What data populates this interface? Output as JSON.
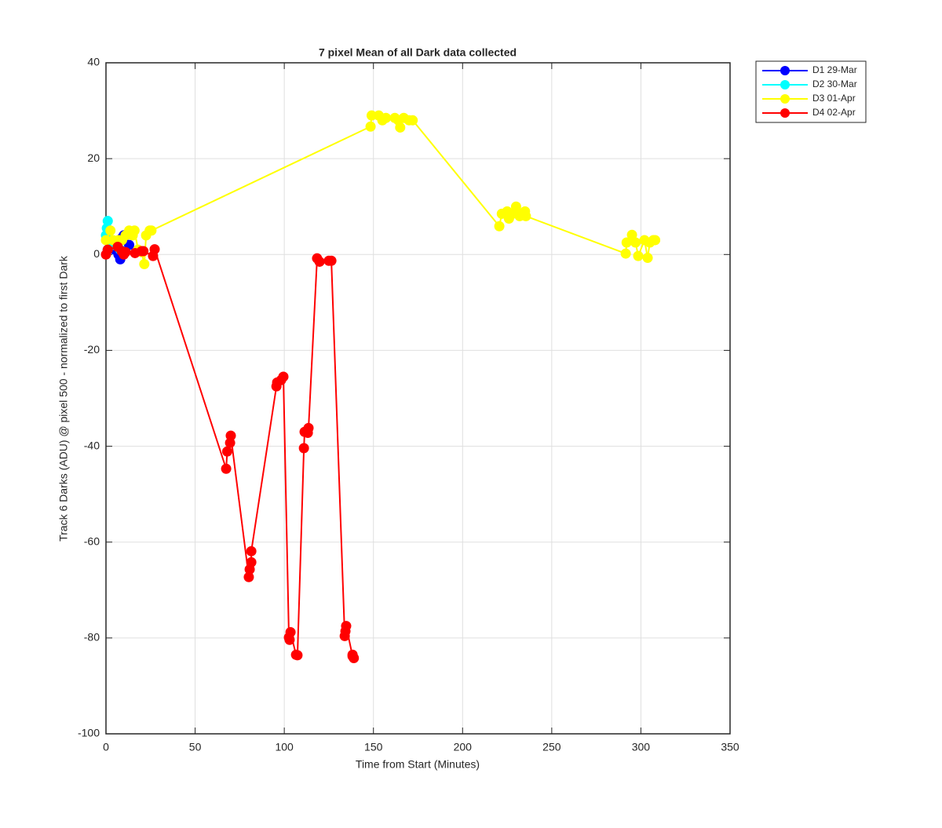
{
  "chart_data": {
    "type": "line",
    "title": "7 pixel Mean of all Dark data collected",
    "xlabel": "Time from Start (Minutes)",
    "ylabel": "Track 6 Darks (ADU) @ pixel 500 - normalized to first Dark",
    "xlim": [
      0,
      350
    ],
    "xticks": [
      0,
      50,
      100,
      150,
      200,
      250,
      300,
      350
    ],
    "ylim": [
      -100,
      40
    ],
    "yticks": [
      -100,
      -80,
      -60,
      -40,
      -20,
      0,
      20,
      40
    ],
    "grid": true,
    "legend": "outside-northeast",
    "series": [
      {
        "name": "D1 29-Mar",
        "color": "#0000ff",
        "x": [
          1,
          3,
          5,
          7,
          8,
          9,
          10,
          11,
          13
        ],
        "values": [
          1,
          2,
          1,
          0,
          -1,
          3.5,
          4,
          4,
          2
        ]
      },
      {
        "name": "D2 30-Mar",
        "color": "#00ffff",
        "x": [
          0,
          0.5,
          1,
          2,
          4,
          6,
          8
        ],
        "values": [
          4,
          5.5,
          7,
          3,
          2,
          2,
          1
        ]
      },
      {
        "name": "D3 01-Apr",
        "color": "#ffff00",
        "x": [
          0,
          2.5,
          4,
          7,
          9,
          11,
          13,
          15,
          16,
          18,
          20,
          21.5,
          22.5,
          24.5,
          25.5,
          148.4,
          149,
          153,
          155,
          157,
          162,
          164,
          165,
          167,
          170,
          172,
          220.6,
          222,
          225,
          226,
          228,
          230,
          232,
          233,
          235,
          235.5,
          291.5,
          292,
          295,
          297,
          298.5,
          302,
          303.8,
          305,
          307,
          308
        ],
        "values": [
          3,
          5,
          3,
          3,
          3,
          4,
          5,
          4,
          5,
          1,
          0.5,
          -2,
          4,
          5,
          5,
          26.7,
          29,
          29,
          28,
          28.5,
          28.5,
          28,
          26.5,
          28.5,
          28,
          28,
          5.9,
          8.5,
          9,
          7.5,
          8.5,
          10,
          8,
          8.5,
          9,
          8,
          0.2,
          2.5,
          4.1,
          2.5,
          -0.3,
          3,
          -0.7,
          2.5,
          3,
          3
        ]
      },
      {
        "name": "D4 02-Apr",
        "color": "#ff0000",
        "x": [
          0,
          1,
          6.6,
          8.8,
          10,
          11,
          16.3,
          20,
          21,
          26.4,
          27.3,
          67.4,
          68,
          69.6,
          70,
          80.1,
          80.6,
          81.5,
          81.5,
          95.6,
          96,
          98.2,
          99.5,
          102.6,
          103,
          103.5,
          106.6,
          107.4,
          111,
          111.4,
          113.2,
          113.6,
          118.4,
          119.8,
          125,
          126.4,
          133.9,
          134.3,
          134.7,
          138.3,
          139,
          138.3
        ],
        "values": [
          0,
          1,
          1.6,
          0.7,
          0,
          0.5,
          0.3,
          0.7,
          0.7,
          -0.3,
          1.1,
          -44.7,
          -41.1,
          -39.3,
          -37.8,
          -67.3,
          -65.7,
          -64.2,
          -61.9,
          -27.5,
          -26.7,
          -26.2,
          -25.5,
          -79.9,
          -80.4,
          -78.8,
          -83.5,
          -83.6,
          -40.4,
          -37,
          -37.2,
          -36.2,
          -0.8,
          -1.5,
          -1.3,
          -1.3,
          -79.6,
          -78.6,
          -77.5,
          -83.8,
          -84.2,
          -83.5
        ]
      }
    ]
  }
}
